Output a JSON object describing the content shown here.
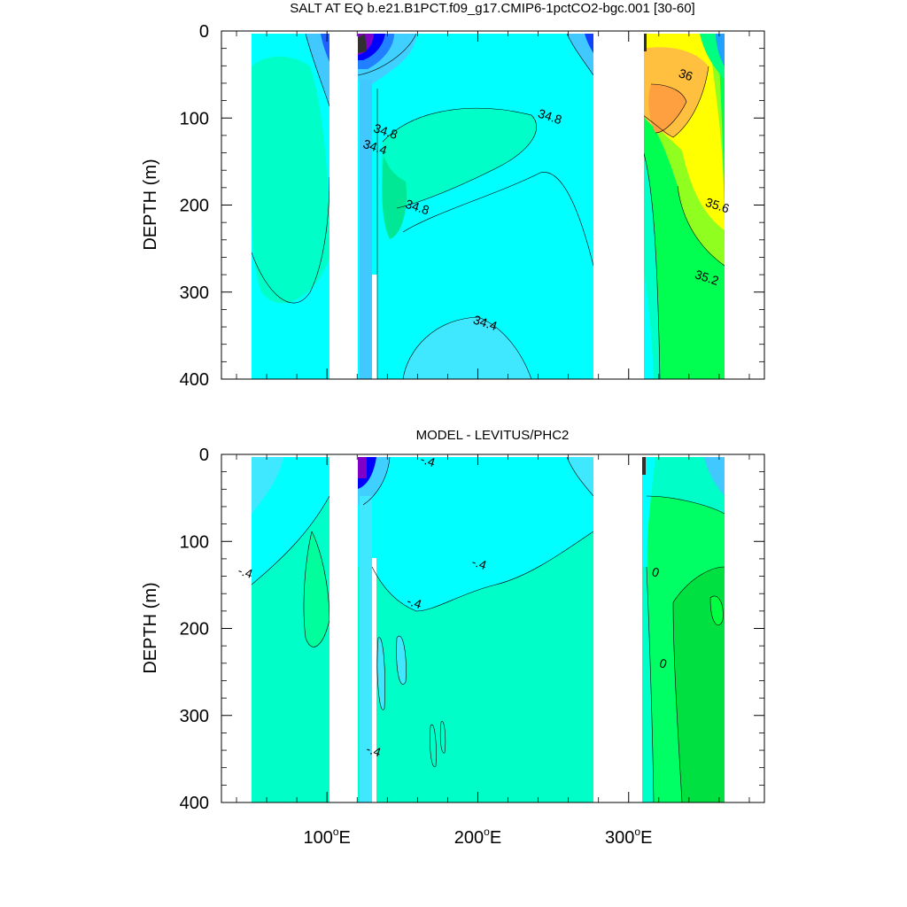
{
  "chart_data": [
    {
      "type": "heatmap",
      "title": "SALT AT EQ b.e21.B1PCT.f09_g17.CMIP6-1pctCO2-bgc.001 [30-60]",
      "ylabel": "DEPTH (m)",
      "yticks": [
        "0",
        "100",
        "200",
        "300",
        "400"
      ],
      "xtick_values": [
        100,
        200,
        300
      ],
      "xlim": [
        30,
        390
      ],
      "ylim": [
        0,
        400
      ],
      "y_reversed": true,
      "land_gaps_lon": [
        [
          97,
          118
        ],
        [
          279,
          314
        ]
      ],
      "contour_labels": [
        {
          "text": "36",
          "lon": 337,
          "depth": 55
        },
        {
          "text": "34.8",
          "lon": 247,
          "depth": 103
        },
        {
          "text": "34.8",
          "lon": 138,
          "depth": 120
        },
        {
          "text": "34.4",
          "lon": 131,
          "depth": 138
        },
        {
          "text": "34.8",
          "lon": 159,
          "depth": 207
        },
        {
          "text": "35.6",
          "lon": 358,
          "depth": 205
        },
        {
          "text": "35.2",
          "lon": 351,
          "depth": 288
        },
        {
          "text": "34.4",
          "lon": 204,
          "depth": 340
        }
      ],
      "colors": {
        "fresh": "#0000ff",
        "base": "#00ffff",
        "mid": "#00ffc8",
        "salty": "#ffff00",
        "saltiest": "#ffa040",
        "green": "#00ff50"
      }
    },
    {
      "type": "heatmap",
      "title": "MODEL - LEVITUS/PHC2",
      "ylabel": "DEPTH (m)",
      "yticks": [
        "0",
        "100",
        "200",
        "300",
        "400"
      ],
      "xtick_values": [
        100,
        200,
        300
      ],
      "xlim": [
        30,
        390
      ],
      "ylim": [
        0,
        400
      ],
      "y_reversed": true,
      "land_gaps_lon": [
        [
          97,
          118
        ],
        [
          279,
          314
        ]
      ],
      "contour_labels": [
        {
          "text": "-.4",
          "lon": 45,
          "depth": 140
        },
        {
          "text": "-.4",
          "lon": 157,
          "depth": 175
        },
        {
          "text": "-.4",
          "lon": 200,
          "depth": 130
        },
        {
          "text": "-.4",
          "lon": 130,
          "depth": 345
        },
        {
          "text": "-.4",
          "lon": 166,
          "depth": 12
        },
        {
          "text": "0",
          "lon": 317,
          "depth": 140
        },
        {
          "text": "0",
          "lon": 322,
          "depth": 245
        }
      ],
      "colors": {
        "base": "#00ffff",
        "mid": "#00ffc8",
        "green": "#00ff64",
        "dark_green": "#00e040",
        "light_blue": "#40e8ff",
        "fresh": "#0000ff"
      }
    }
  ],
  "xtick_labels": [
    "100",
    "200",
    "300"
  ],
  "xtick_suffix": "E",
  "degree_symbol": "o"
}
